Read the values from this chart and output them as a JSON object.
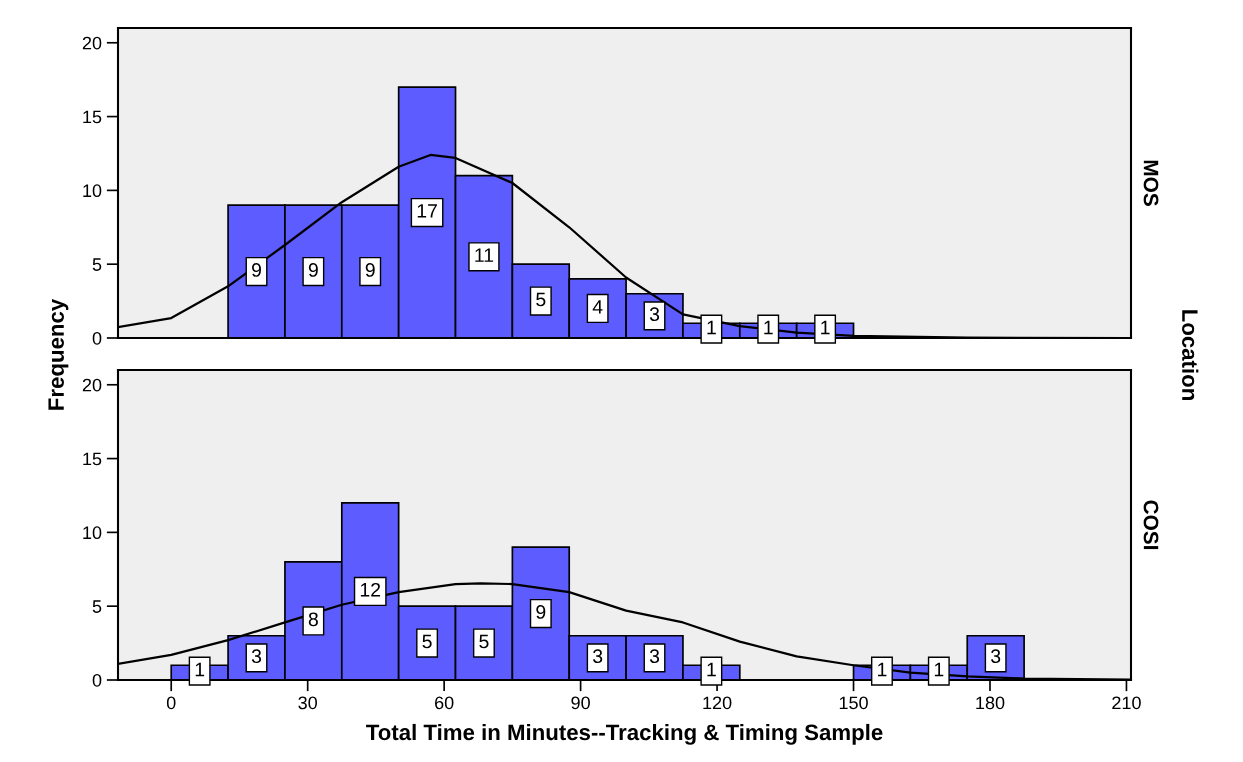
{
  "chart_data": [
    {
      "type": "histogram",
      "ylabel": "Frequency",
      "annotations": [
        "MOS",
        "Location"
      ],
      "bins": [
        12.5,
        25,
        37.5,
        50,
        62.5,
        75,
        87.5,
        100,
        112.5,
        125,
        137.5,
        150
      ],
      "values": [
        9,
        9,
        9,
        17,
        11,
        5,
        4,
        3,
        1,
        1,
        1
      ],
      "value_labels": [
        "9",
        "9",
        "9",
        "17",
        "11",
        "5",
        "4",
        "3",
        "1",
        "1",
        "1"
      ],
      "color": "#5c5cff",
      "xlim": [
        -11.7,
        211
      ],
      "ylim": [
        0,
        21
      ],
      "yticks": [
        0,
        5,
        10,
        15,
        20
      ],
      "tick_labels": "y",
      "grid": false,
      "series": [
        {
          "type": "line",
          "color": "#000000",
          "x": [
            -11.7,
            0,
            12.5,
            25,
            37.5,
            50,
            57,
            62.5,
            75,
            87.5,
            100,
            112.5,
            125,
            137.5,
            150,
            175,
            211
          ],
          "values": [
            0.74,
            1.35,
            3.5,
            6.3,
            9.2,
            11.6,
            12.4,
            12.2,
            10.5,
            7.5,
            4.1,
            1.6,
            0.8,
            0.37,
            0.15,
            0.02,
            0
          ]
        }
      ]
    },
    {
      "type": "histogram",
      "annotations": [
        "COSI"
      ],
      "xlabel": "Total Time in Minutes--Tracking & Timing Sample",
      "bins": [
        0,
        12.5,
        25,
        37.5,
        50,
        62.5,
        75,
        87.5,
        100,
        112.5,
        125,
        137.5,
        150,
        162.5,
        175,
        187.5
      ],
      "values": [
        1,
        3,
        8,
        12,
        5,
        5,
        9,
        3,
        3,
        1,
        0,
        0,
        1,
        1,
        3
      ],
      "value_labels": [
        "1",
        "3",
        "8",
        "12",
        "5",
        "5",
        "9",
        "3",
        "3",
        "1",
        null,
        null,
        "1",
        "1",
        "3"
      ],
      "color": "#5c5cff",
      "xlim": [
        -11.7,
        211
      ],
      "xticks": [
        0,
        30,
        60,
        90,
        120,
        150,
        180,
        210
      ],
      "ylim": [
        0,
        21
      ],
      "yticks": [
        0,
        5,
        10,
        15,
        20
      ],
      "grid": false,
      "series": [
        {
          "type": "line",
          "color": "#000000",
          "x": [
            -11.7,
            0,
            12.5,
            25,
            37.5,
            50,
            62.5,
            68,
            75,
            87.5,
            100,
            112.5,
            125,
            137.5,
            150,
            162.5,
            175,
            187.5,
            211
          ],
          "values": [
            1.1,
            1.7,
            2.7,
            3.9,
            5.1,
            5.95,
            6.5,
            6.55,
            6.5,
            5.95,
            4.7,
            3.9,
            2.6,
            1.6,
            1.0,
            0.5,
            0.25,
            0.1,
            0.03
          ]
        }
      ]
    }
  ]
}
